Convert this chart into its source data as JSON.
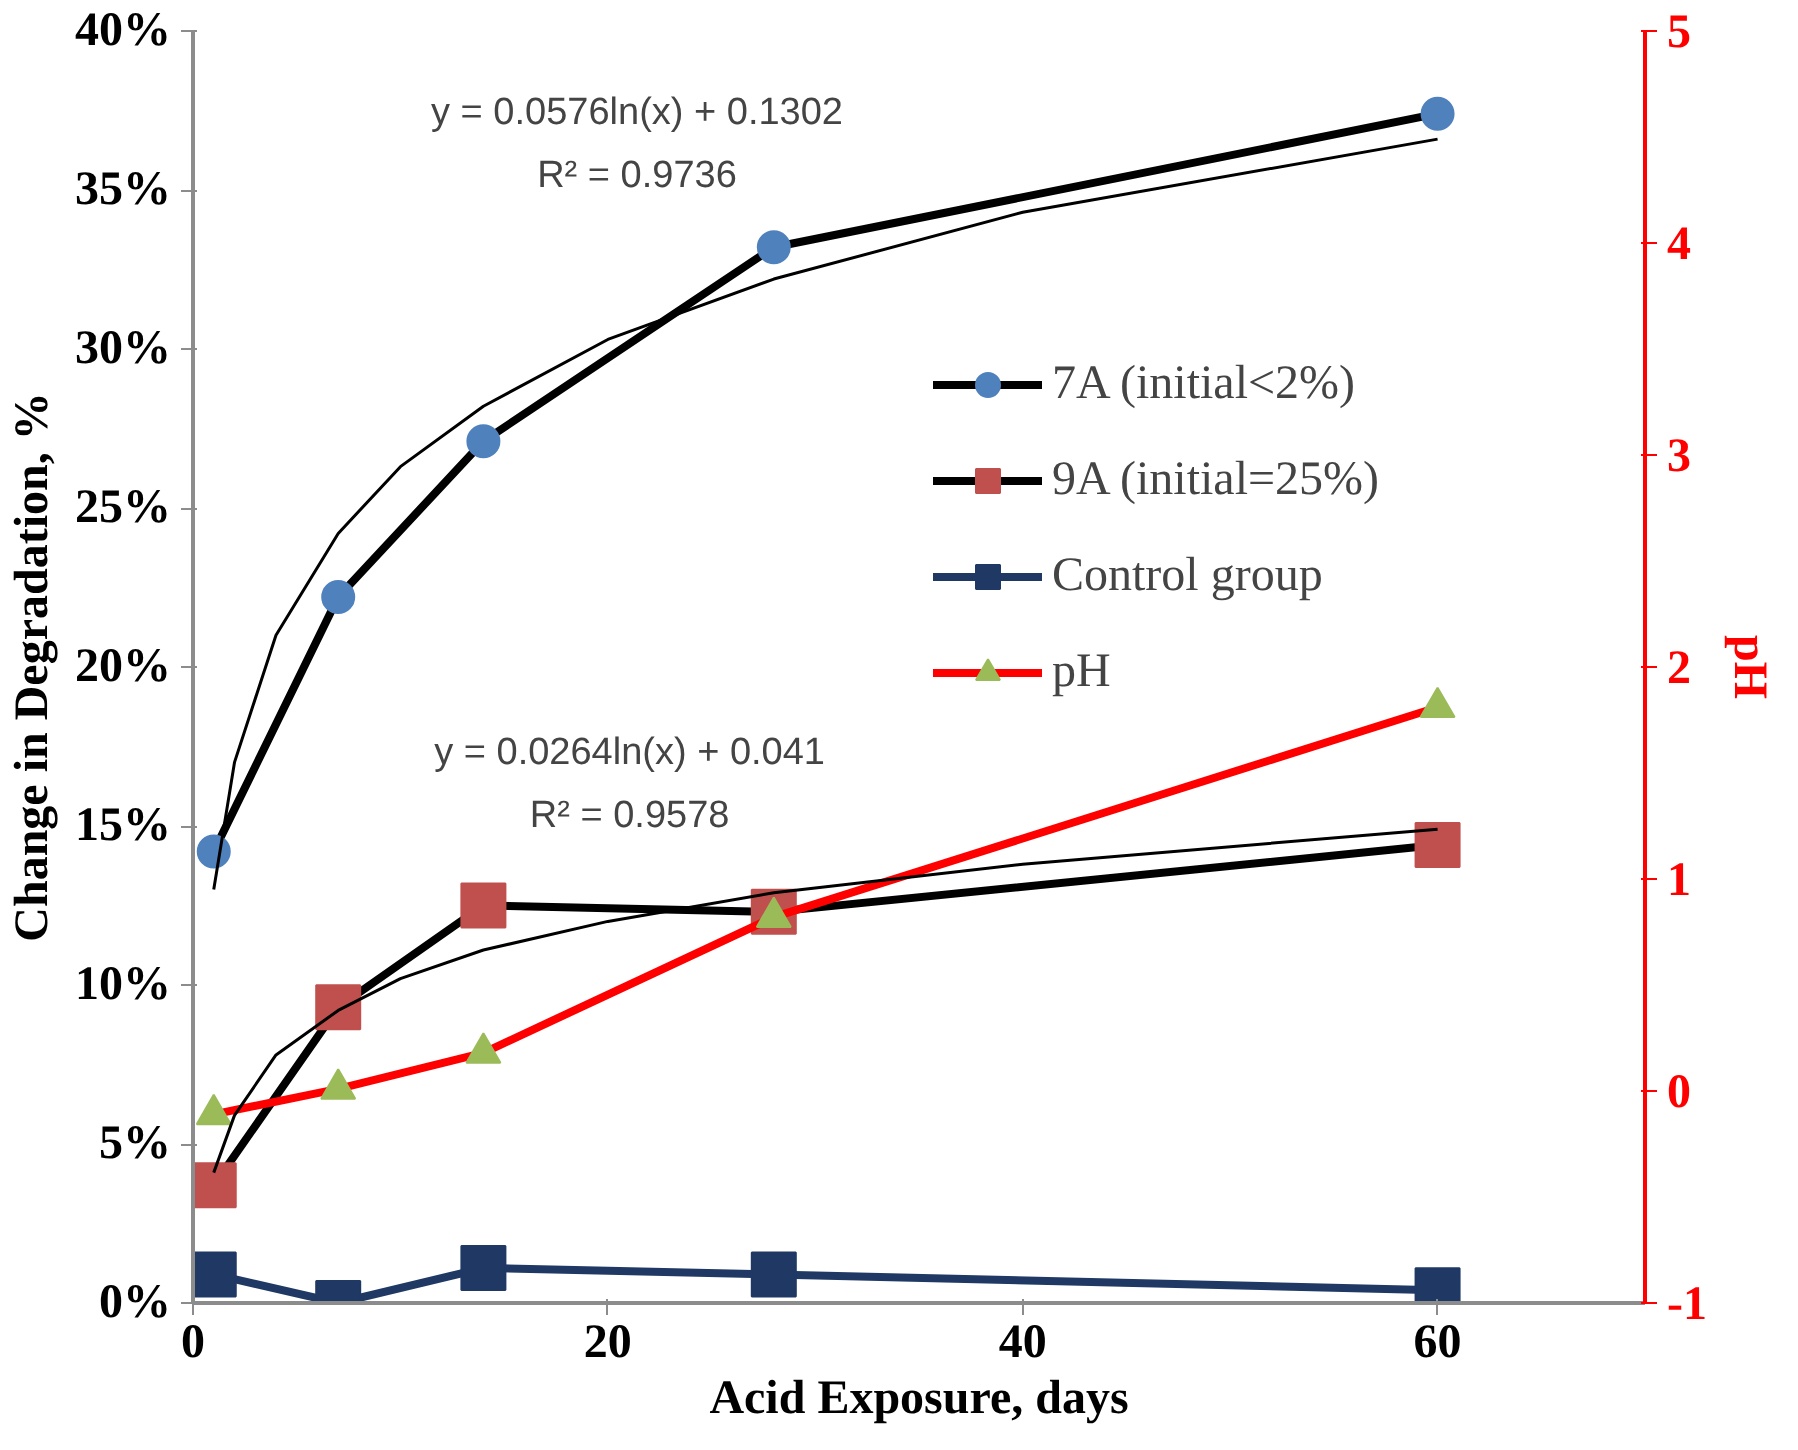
{
  "chart_data": {
    "type": "line",
    "xlabel": "Acid Exposure, days",
    "ylabel": "Change in Degradation, %",
    "y2label": "pH",
    "x": [
      1,
      7,
      14,
      28,
      60
    ],
    "xlim": [
      0,
      70
    ],
    "xticks": [
      0,
      20,
      40,
      60
    ],
    "ylim": [
      0,
      40
    ],
    "yticks": [
      {
        "value": 0,
        "label": "0%"
      },
      {
        "value": 5,
        "label": "5%"
      },
      {
        "value": 10,
        "label": "10%"
      },
      {
        "value": 15,
        "label": "15%"
      },
      {
        "value": 20,
        "label": "20%"
      },
      {
        "value": 25,
        "label": "25%"
      },
      {
        "value": 30,
        "label": "30%"
      },
      {
        "value": 35,
        "label": "35%"
      },
      {
        "value": 40,
        "label": "40%"
      }
    ],
    "y2lim": [
      -1,
      5
    ],
    "y2ticks": [
      -1,
      0,
      1,
      2,
      3,
      4,
      5
    ],
    "grid": false,
    "legend": "right",
    "series": [
      {
        "name": "7A (initial<2%)",
        "color": "#000000",
        "colors": [
          "#4f81bd",
          "#4f81bd",
          "#4f81bd",
          "#4f81bd",
          "#4f81bd"
        ],
        "marker": "circle",
        "values": [
          14.2,
          22.2,
          27.1,
          33.2,
          37.4
        ]
      },
      {
        "name": "9A (initial=25%)",
        "color": "#000000",
        "colors": [
          "#c0504d",
          "#c0504d",
          "#c0504d",
          "#c0504d",
          "#c0504d"
        ],
        "marker": "square",
        "values": [
          3.7,
          9.3,
          12.5,
          12.3,
          14.4
        ]
      },
      {
        "name": "Control group",
        "color": "#1f3864",
        "marker": "square",
        "values": [
          0.9,
          0.0,
          1.1,
          0.9,
          0.4
        ]
      },
      {
        "name": "pH",
        "color": "#ff0000",
        "colors": [
          "#9bbb59",
          "#9bbb59",
          "#9bbb59",
          "#9bbb59",
          "#9bbb59"
        ],
        "marker": "triangle",
        "axis": "y2",
        "values": [
          -0.11,
          0.01,
          0.18,
          0.82,
          1.81
        ]
      },
      {
        "type": "line",
        "color": "#000000",
        "marker": "none",
        "x": [
          1,
          2,
          4,
          7,
          10,
          14,
          20,
          28,
          40,
          60
        ],
        "values": [
          13.0,
          17.0,
          21.0,
          24.2,
          26.3,
          28.2,
          30.3,
          32.2,
          34.3,
          36.6
        ]
      },
      {
        "type": "line",
        "color": "#000000",
        "marker": "none",
        "x": [
          1,
          2,
          4,
          7,
          10,
          14,
          20,
          28,
          40,
          60
        ],
        "values": [
          4.1,
          5.9,
          7.8,
          9.2,
          10.2,
          11.1,
          12.0,
          12.9,
          13.8,
          14.9
        ]
      }
    ],
    "annotations": [
      "y = 0.0576ln(x) + 0.1302\nR² = 0.9736",
      "y = 0.0264ln(x) + 0.041\nR² = 0.9578"
    ]
  }
}
